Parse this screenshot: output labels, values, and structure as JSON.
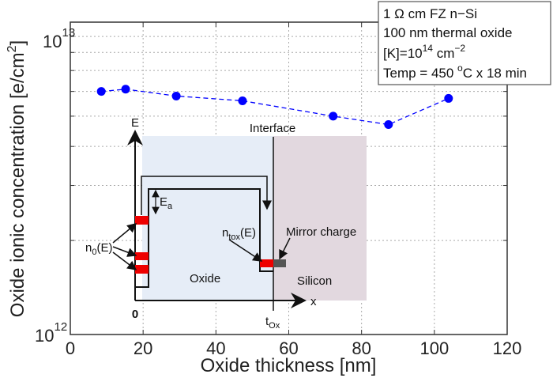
{
  "chart_data": {
    "type": "line",
    "xlabel": "Oxide thickness [nm]",
    "ylabel": "Oxide ionic concentration  [e/cm",
    "ylabel_sup": "2",
    "ylabel_end": "]",
    "xlim": [
      0,
      120
    ],
    "ylim": [
      1000000000000.0,
      10000000000000.0
    ],
    "yscale": "log",
    "grid": true,
    "x_ticks": [
      "0",
      "20",
      "40",
      "60",
      "80",
      "100",
      "120"
    ],
    "y_ticks": [
      {
        "base": "10",
        "exp": "12"
      },
      {
        "base": "10",
        "exp": "13"
      }
    ],
    "series": [
      {
        "color": "#0000ff",
        "style": "dashed, circle markers",
        "x": [
          8.5,
          15.2,
          29.1,
          47.3,
          72.2,
          87.4,
          103.9
        ],
        "y": [
          6000000000000.0,
          6100000000000.0,
          5800000000000.0,
          5600000000000.0,
          5000000000000.0,
          4700000000000.0,
          5700000000000.0
        ]
      }
    ],
    "legend_box": {
      "placement": "top-right",
      "lines": [
        "1 Ω cm FZ n−Si",
        "100 nm thermal oxide"
      ],
      "k_pre": "[K]=10",
      "k_exp": "14",
      "k_unit": " cm",
      "k_unit_exp": "−2",
      "temp_pre": "Temp = 450 ",
      "temp_sup": "o",
      "temp_post": "C x 18 min"
    },
    "inset": {
      "e_axis": "E",
      "x_axis": "x",
      "origin": "0",
      "interface": "Interface",
      "ea": "E",
      "ea_sub": "a",
      "n0": "n",
      "n0_sub": "0",
      "n0_post": "(E)",
      "ntox": "n",
      "ntox_sub": "tox",
      "ntox_post": "(E)",
      "mirror": "Mirror charge",
      "oxide": "Oxide",
      "silicon": "Silicon",
      "tox": "t",
      "tox_sub": "Ox",
      "colors": {
        "oxide": "#e6edf7",
        "silicon": "#e2d8df",
        "trap": "#ee0000",
        "mirror": "#555555"
      }
    }
  }
}
